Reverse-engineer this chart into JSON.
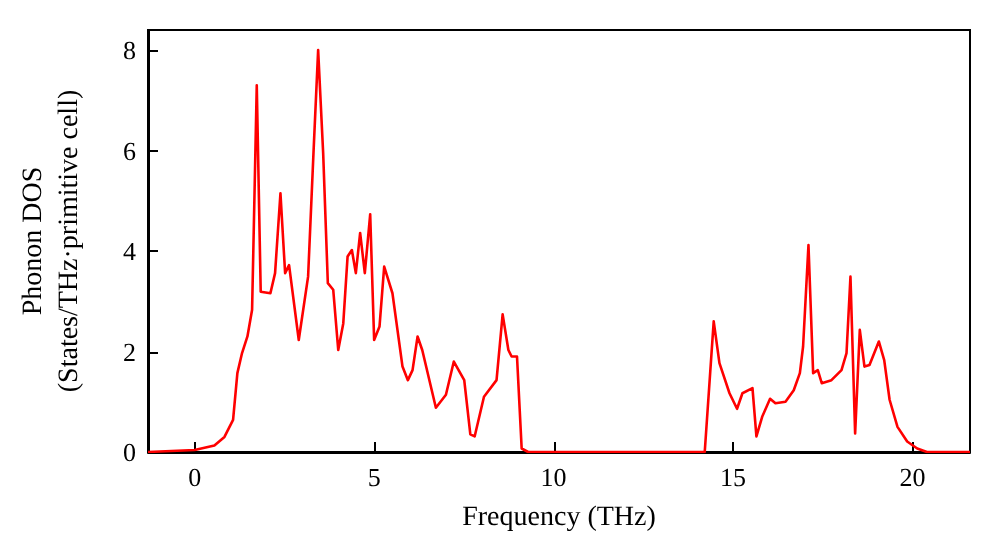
{
  "chart_data": {
    "type": "line",
    "xlabel": "Frequency (THz)",
    "ylabel": "Phonon DOS\n(States/THz·primitive cell)",
    "xlim": [
      -1.3,
      21.6
    ],
    "ylim": [
      0,
      8.4
    ],
    "xticks": [
      0,
      5,
      10,
      15,
      20
    ],
    "yticks": [
      0,
      2,
      4,
      6,
      8
    ],
    "grid": false,
    "marker": "none",
    "line_style": "solid",
    "series": [
      {
        "color": "#ff0000",
        "x": [
          -1.3,
          0,
          0.55,
          0.83,
          1.07,
          1.19,
          1.32,
          1.47,
          1.6,
          1.73,
          1.84,
          2.11,
          2.24,
          2.39,
          2.52,
          2.63,
          2.9,
          3.16,
          3.31,
          3.44,
          3.58,
          3.71,
          3.86,
          4.0,
          4.14,
          4.26,
          4.38,
          4.49,
          4.61,
          4.74,
          4.89,
          5.0,
          5.15,
          5.28,
          5.51,
          5.79,
          5.94,
          6.07,
          6.21,
          6.34,
          6.72,
          7.0,
          7.22,
          7.51,
          7.68,
          7.8,
          8.06,
          8.41,
          8.58,
          8.74,
          8.83,
          8.98,
          9.11,
          9.29,
          14.21,
          14.46,
          14.62,
          14.9,
          15.11,
          15.26,
          15.54,
          15.65,
          15.81,
          16.03,
          16.18,
          16.46,
          16.69,
          16.86,
          16.95,
          17.1,
          17.23,
          17.36,
          17.47,
          17.74,
          18.02,
          18.16,
          18.27,
          18.4,
          18.53,
          18.66,
          18.8,
          19.06,
          19.21,
          19.36,
          19.58,
          19.85,
          20.13,
          20.4,
          21.6
        ],
        "values": [
          0,
          0.04,
          0.13,
          0.3,
          0.64,
          1.57,
          1.97,
          2.3,
          2.83,
          7.3,
          3.19,
          3.16,
          3.56,
          5.15,
          3.56,
          3.72,
          2.23,
          3.49,
          5.95,
          8.0,
          5.95,
          3.36,
          3.23,
          2.03,
          2.56,
          3.89,
          4.02,
          3.56,
          4.36,
          3.56,
          4.73,
          2.23,
          2.5,
          3.69,
          3.16,
          1.7,
          1.43,
          1.63,
          2.3,
          2.03,
          0.88,
          1.14,
          1.8,
          1.43,
          0.35,
          0.31,
          1.1,
          1.43,
          2.74,
          2.03,
          1.9,
          1.9,
          0.07,
          0,
          0,
          2.6,
          1.77,
          1.17,
          0.86,
          1.17,
          1.27,
          0.31,
          0.7,
          1.06,
          0.97,
          1.0,
          1.23,
          1.57,
          2.1,
          4.12,
          1.57,
          1.63,
          1.37,
          1.43,
          1.63,
          1.97,
          3.49,
          0.37,
          2.43,
          1.7,
          1.73,
          2.2,
          1.83,
          1.04,
          0.5,
          0.21,
          0.07,
          0,
          0
        ]
      }
    ]
  }
}
